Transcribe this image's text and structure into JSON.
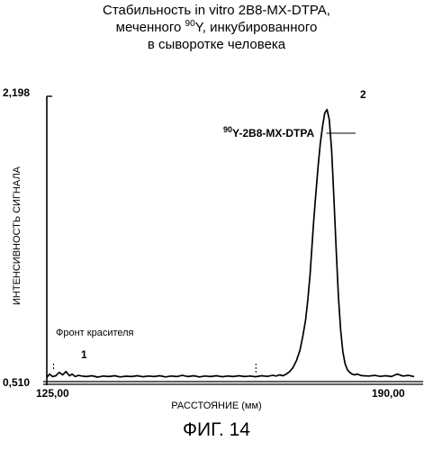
{
  "title": {
    "line1": "Стабильность in vitro 2B8-MX-DTPA,",
    "line2_before": "меченного ",
    "line2_sup": "90",
    "line2_after": "Y, инкубированного",
    "line3": "в сыворотке человека"
  },
  "figure_caption": "ФИГ. 14",
  "chart_data": {
    "type": "line",
    "xlabel": "РАССТОЯНИЕ (мм)",
    "ylabel": "ИНТЕНСИВНОСТЬ СИГНАЛА",
    "xlim": [
      125.0,
      190.0
    ],
    "ylim": [
      0.51,
      2.198
    ],
    "x_tick_labels": [
      "125,00",
      "190,00"
    ],
    "y_tick_labels": [
      "2,198",
      "0,510"
    ],
    "series": [
      {
        "x": [
          125.0,
          125.5,
          126.0,
          126.6,
          127.2,
          127.8,
          128.4,
          129.0,
          129.5,
          130.0,
          130.6,
          131.2,
          132.0,
          133.0,
          134.0,
          135.0,
          136.0,
          137.0,
          138.0,
          139.0,
          140.0,
          141.0,
          142.0,
          143.0,
          144.0,
          145.0,
          146.0,
          147.0,
          148.0,
          149.0,
          150.0,
          151.0,
          152.0,
          153.0,
          154.0,
          155.0,
          156.0,
          157.0,
          158.0,
          159.0,
          160.0,
          161.0,
          162.0,
          163.0,
          164.0,
          165.0,
          165.6,
          166.2,
          166.8,
          167.4,
          168.0,
          168.6,
          169.2,
          169.8,
          170.3,
          170.8,
          171.2,
          171.6,
          171.9,
          172.2,
          172.6,
          173.0,
          173.4,
          173.8,
          174.2,
          174.6,
          175.0,
          175.4,
          175.8,
          176.2,
          176.6,
          177.0,
          177.4,
          177.8,
          178.2,
          178.6,
          179.0,
          179.5,
          180.0,
          180.5,
          181.0,
          182.0,
          183.0,
          184.0,
          185.0,
          186.0,
          187.0,
          188.0,
          189.0,
          190.0
        ],
        "y": [
          0.54,
          0.56,
          0.545,
          0.55,
          0.57,
          0.555,
          0.575,
          0.55,
          0.56,
          0.545,
          0.552,
          0.548,
          0.545,
          0.55,
          0.542,
          0.548,
          0.545,
          0.55,
          0.543,
          0.547,
          0.545,
          0.55,
          0.544,
          0.548,
          0.545,
          0.55,
          0.543,
          0.548,
          0.545,
          0.552,
          0.545,
          0.55,
          0.543,
          0.548,
          0.545,
          0.55,
          0.544,
          0.548,
          0.545,
          0.55,
          0.545,
          0.548,
          0.544,
          0.55,
          0.546,
          0.552,
          0.548,
          0.555,
          0.55,
          0.56,
          0.575,
          0.6,
          0.64,
          0.7,
          0.78,
          0.88,
          1.0,
          1.15,
          1.3,
          1.45,
          1.62,
          1.78,
          1.92,
          2.02,
          2.1,
          2.12,
          2.06,
          1.88,
          1.6,
          1.3,
          1.02,
          0.82,
          0.69,
          0.62,
          0.585,
          0.57,
          0.56,
          0.555,
          0.56,
          0.552,
          0.55,
          0.548,
          0.552,
          0.546,
          0.55,
          0.545,
          0.56,
          0.548,
          0.552,
          0.545
        ]
      }
    ],
    "annotations": [
      {
        "text": "Фронт красителя",
        "x": 127.5,
        "y": 0.64
      },
      {
        "text": "1",
        "x": 128.4,
        "y": 0.6
      },
      {
        "text": "2",
        "x": 174.2,
        "y": 2.19
      },
      {
        "label_sup": "90",
        "label_main": "Y-2B8-MX-DTPA",
        "x": 174.0,
        "y": 1.96
      }
    ]
  }
}
